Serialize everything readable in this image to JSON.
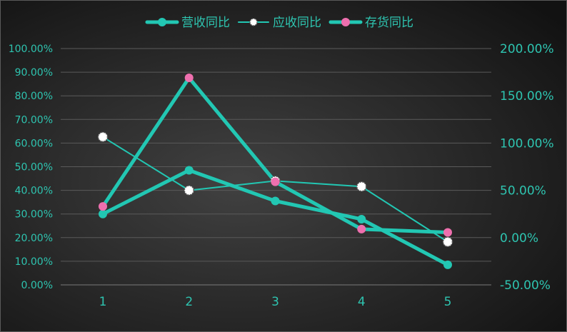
{
  "chart_data": {
    "type": "line",
    "categories": [
      "1",
      "2",
      "3",
      "4",
      "5"
    ],
    "y_left": {
      "ticks": [
        "0.00%",
        "10.00%",
        "20.00%",
        "30.00%",
        "40.00%",
        "50.00%",
        "60.00%",
        "70.00%",
        "80.00%",
        "90.00%",
        "100.00%"
      ],
      "ylim": [
        0,
        100
      ]
    },
    "y_right": {
      "ticks": [
        "-50.00%",
        "0.00%",
        "50.00%",
        "100.00%",
        "150.00%",
        "200.00%"
      ],
      "ylim": [
        -50,
        200
      ]
    },
    "series": [
      {
        "name": "营收同比",
        "axis": "left",
        "values": [
          30.0,
          48.5,
          35.5,
          27.8,
          8.5
        ],
        "color": "#22c7b3",
        "marker_color": "#22c7b3"
      },
      {
        "name": "应收同比",
        "axis": "right",
        "values": [
          106.5,
          50.0,
          60.0,
          54.0,
          -4.5
        ],
        "color": "#22c7b3",
        "marker_color": "#ffffff"
      },
      {
        "name": "存货同比",
        "axis": "right",
        "values": [
          33.0,
          169.0,
          59.0,
          9.0,
          5.5
        ],
        "color": "#22c7b3",
        "marker_color": "#ee6fae"
      }
    ],
    "grid": true,
    "legend_position": "top-center"
  }
}
